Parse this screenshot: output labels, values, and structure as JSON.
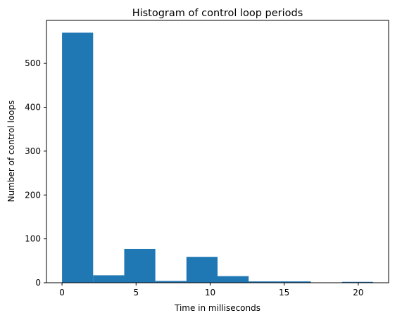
{
  "chart_data": {
    "type": "bar",
    "title": "Histogram of control loop periods",
    "xlabel": "Time in milliseconds",
    "ylabel": "Number of control loops",
    "xlim": [
      -1.05,
      22.05
    ],
    "ylim": [
      0,
      598
    ],
    "xticks": [
      0,
      5,
      10,
      15,
      20
    ],
    "yticks": [
      0,
      100,
      200,
      300,
      400,
      500
    ],
    "bin_edges": [
      0,
      2.1,
      4.2,
      6.3,
      8.4,
      10.5,
      12.6,
      14.7,
      16.8,
      18.9,
      21.0
    ],
    "values": [
      570,
      17,
      77,
      4,
      59,
      15,
      3,
      3,
      0,
      2
    ],
    "bar_color": "#1f77b4",
    "grid": false,
    "legend": false
  }
}
